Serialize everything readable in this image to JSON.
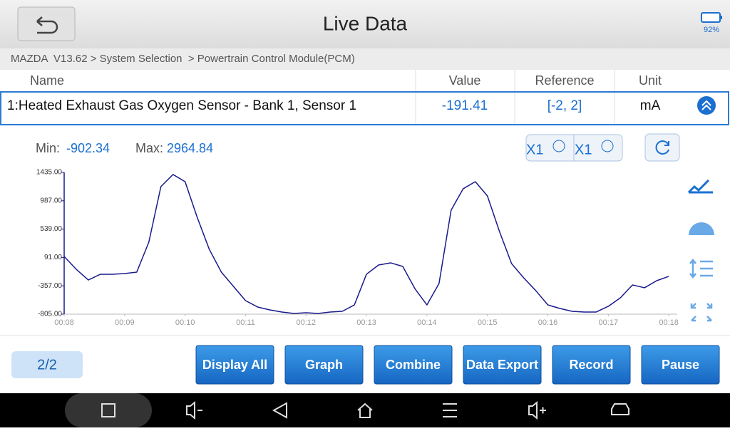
{
  "header": {
    "title": "Live Data",
    "battery": "92%"
  },
  "breadcrumb": "MAZDA  V13.62 > System Selection  > Powertrain Control Module(PCM)",
  "table": {
    "columns": [
      "Name",
      "Value",
      "Reference",
      "Unit"
    ],
    "rows": [
      [
        "1:Heated Exhaust Gas Oxygen Sensor - Bank 1, Sensor 1",
        "-191.41",
        "[-2, 2]",
        "mA"
      ]
    ]
  },
  "stats": {
    "min_label": "Min:",
    "min": "-902.34",
    "max_label": "Max:",
    "max": "2964.84"
  },
  "zoom": [
    "X1",
    "X1"
  ],
  "page_indicator": "2/2",
  "buttons": [
    "Display All",
    "Graph",
    "Combine",
    "Data Export",
    "Record",
    "Pause"
  ],
  "chart_data": {
    "type": "line",
    "color": "#1a1a8c",
    "x": [
      8,
      8.2,
      8.4,
      8.6,
      8.8,
      9,
      9.2,
      9.4,
      9.6,
      9.8,
      10,
      10.2,
      10.4,
      10.6,
      10.8,
      11,
      11.2,
      11.4,
      11.6,
      11.8,
      12,
      12.2,
      12.4,
      12.6,
      12.8,
      13,
      13.2,
      13.4,
      13.6,
      13.8,
      14,
      14.2,
      14.4,
      14.6,
      14.8,
      15,
      15.2,
      15.4,
      15.6,
      15.8,
      16,
      16.2,
      16.4,
      16.6,
      16.8,
      17,
      17.2,
      17.4,
      17.6,
      17.8,
      18
    ],
    "values": [
      107,
      -96,
      -265,
      -174,
      -174,
      -163,
      -141,
      332,
      1210,
      1402,
      1289,
      726,
      220,
      -141,
      -366,
      -591,
      -692,
      -737,
      -771,
      -794,
      -782,
      -794,
      -771,
      -760,
      -659,
      -174,
      -28,
      6,
      -51,
      -400,
      -659,
      -321,
      839,
      1177,
      1289,
      1064,
      501,
      -6,
      -231,
      -433,
      -659,
      -715,
      -760,
      -771,
      -771,
      -681,
      -546,
      -343,
      -388,
      -276,
      -208
    ],
    "xlim": [
      8,
      18.14
    ],
    "ylim": [
      -805,
      1435
    ],
    "xticks": [
      {
        "value": 8,
        "label": "00:08"
      },
      {
        "value": 9,
        "label": "00:09"
      },
      {
        "value": 10,
        "label": "00:10"
      },
      {
        "value": 11,
        "label": "00:11"
      },
      {
        "value": 12,
        "label": "00:12"
      },
      {
        "value": 13,
        "label": "00:13"
      },
      {
        "value": 14,
        "label": "00:14"
      },
      {
        "value": 15,
        "label": "00:15"
      },
      {
        "value": 16,
        "label": "00:16"
      },
      {
        "value": 17,
        "label": "00:17"
      },
      {
        "value": 18,
        "label": "00:18"
      }
    ],
    "yticks": [
      {
        "value": -805,
        "label": "-805.00"
      },
      {
        "value": -357,
        "label": "-357.00"
      },
      {
        "value": 91,
        "label": "91.00"
      },
      {
        "value": 539,
        "label": "539.00"
      },
      {
        "value": 987,
        "label": "987.00"
      },
      {
        "value": 1435,
        "label": "1435.00"
      }
    ]
  }
}
